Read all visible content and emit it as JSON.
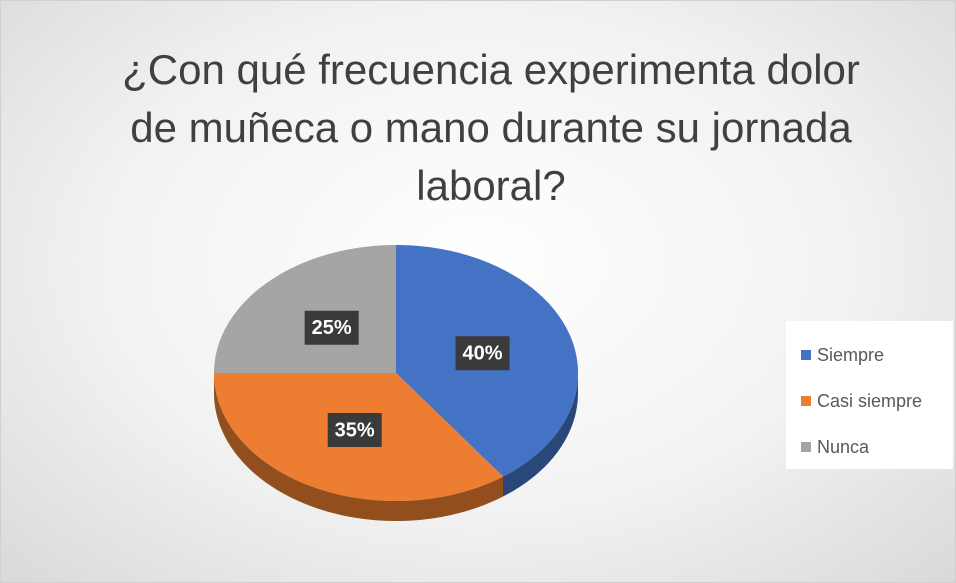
{
  "chart_data": {
    "type": "pie",
    "title": "¿Con qué frecuencia experimenta dolor de muñeca o mano durante su jornada laboral?",
    "categories": [
      "Siempre",
      "Casi siempre",
      "Nunca"
    ],
    "values": [
      40,
      35,
      25
    ],
    "value_labels": [
      "40%",
      "35%",
      "25%"
    ],
    "colors": [
      "#4472c4",
      "#ed7d31",
      "#a5a5a5"
    ],
    "legend": "right"
  }
}
